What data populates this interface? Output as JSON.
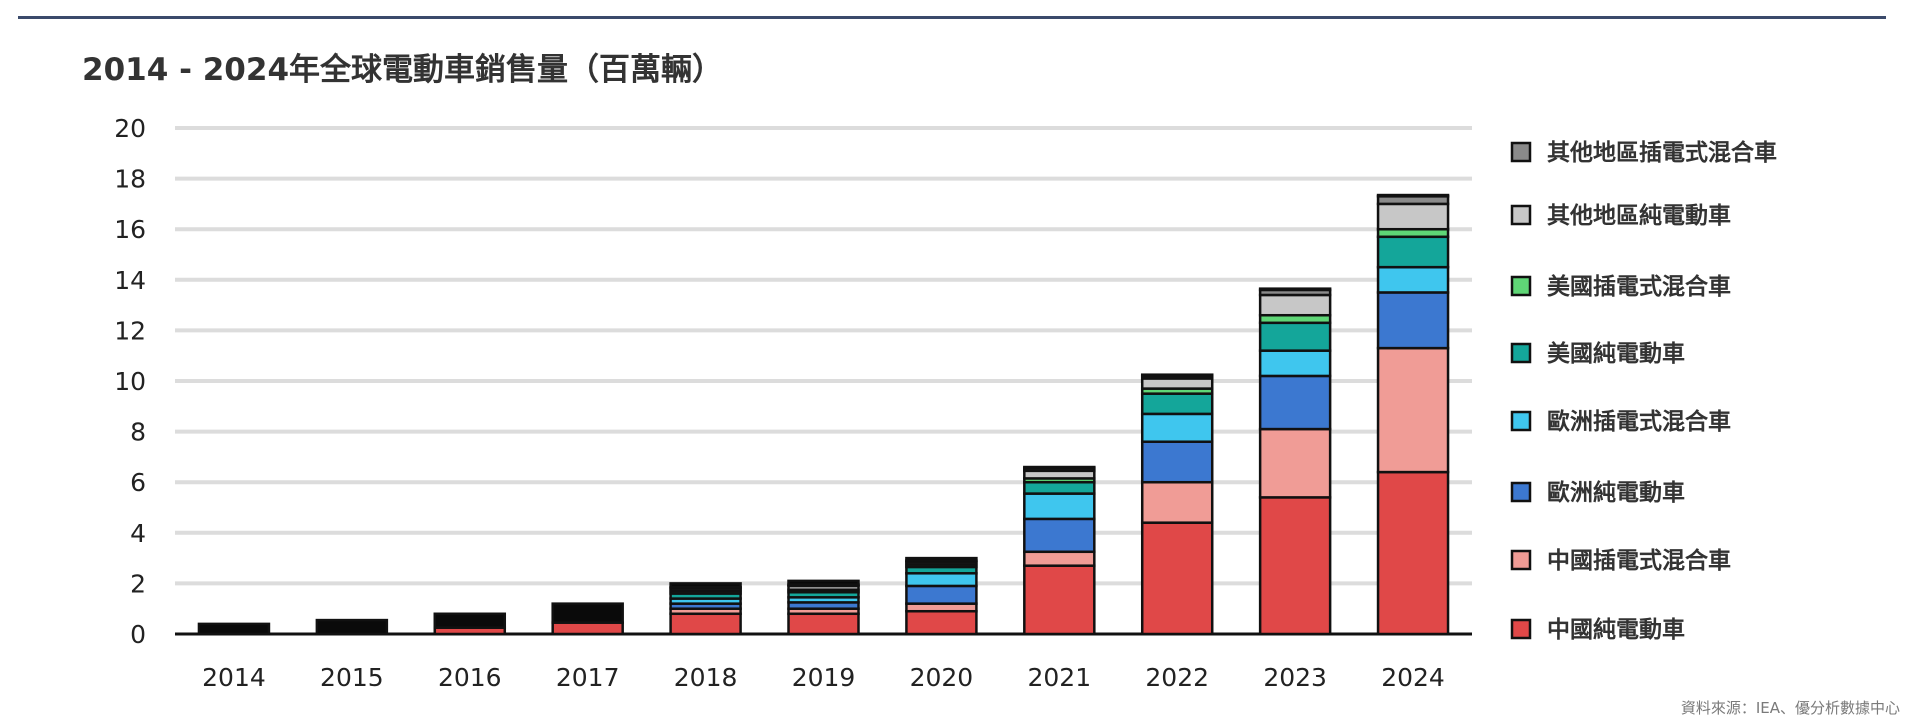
{
  "title": "2014 - 2024年全球電動車銷售量（百萬輛）",
  "source": "資料來源：IEA、優分析數據中心",
  "chart_data": {
    "type": "bar",
    "stacked": true,
    "title": "2014 - 2024年全球電動車銷售量（百萬輛）",
    "xlabel": "",
    "ylabel": "",
    "ylim": [
      0,
      20
    ],
    "yticks": [
      0,
      2,
      4,
      6,
      8,
      10,
      12,
      14,
      16,
      18,
      20
    ],
    "grid": true,
    "legend_position": "right",
    "categories": [
      "2014",
      "2015",
      "2016",
      "2017",
      "2018",
      "2019",
      "2020",
      "2021",
      "2022",
      "2023",
      "2024"
    ],
    "series": [
      {
        "name": "中國純電動車",
        "color": "#e04848",
        "values": [
          0.0,
          0.0,
          0.25,
          0.45,
          0.8,
          0.8,
          0.9,
          2.7,
          4.4,
          5.4,
          6.4
        ]
      },
      {
        "name": "中國插電式混合車",
        "color": "#f09c96",
        "values": [
          0.0,
          0.0,
          0.0,
          0.0,
          0.2,
          0.2,
          0.3,
          0.55,
          1.6,
          2.7,
          4.9
        ]
      },
      {
        "name": "歐洲純電動車",
        "color": "#3c78d0",
        "values": [
          0.0,
          0.0,
          0.0,
          0.0,
          0.2,
          0.25,
          0.7,
          1.3,
          1.6,
          2.1,
          2.2
        ]
      },
      {
        "name": "歐洲插電式混合車",
        "color": "#3fc6ee",
        "values": [
          0.0,
          0.0,
          0.0,
          0.0,
          0.2,
          0.2,
          0.5,
          1.0,
          1.1,
          1.0,
          1.0
        ]
      },
      {
        "name": "美國純電動車",
        "color": "#14a69a",
        "values": [
          0.0,
          0.0,
          0.0,
          0.0,
          0.2,
          0.2,
          0.25,
          0.45,
          0.8,
          1.1,
          1.2
        ]
      },
      {
        "name": "美國插電式混合車",
        "color": "#5fd676",
        "values": [
          0.0,
          0.0,
          0.0,
          0.0,
          0.1,
          0.1,
          0.1,
          0.15,
          0.2,
          0.3,
          0.3
        ]
      },
      {
        "name": "其他地區純電動車",
        "color": "#c7c7c7",
        "values": [
          0.0,
          0.0,
          0.0,
          0.0,
          0.1,
          0.15,
          0.1,
          0.3,
          0.4,
          0.8,
          1.0
        ]
      },
      {
        "name": "其他地區插電式混合車",
        "color": "#8a8a8a",
        "values": [
          0.0,
          0.0,
          0.0,
          0.0,
          0.05,
          0.05,
          0.05,
          0.1,
          0.1,
          0.2,
          0.3
        ]
      },
      {
        "name": "",
        "color": "#0a0a0a",
        "values": [
          0.4,
          0.55,
          0.55,
          0.75,
          0.15,
          0.15,
          0.1,
          0.05,
          0.05,
          0.05,
          0.05
        ]
      }
    ]
  }
}
